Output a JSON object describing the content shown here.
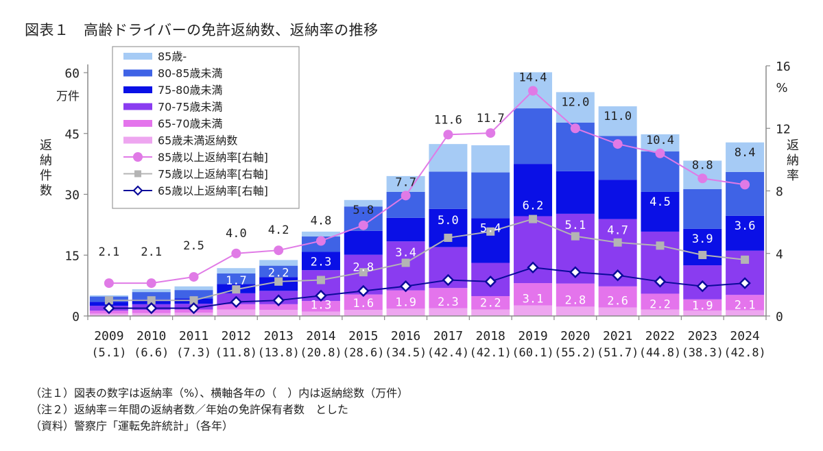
{
  "title": "図表１　高齢ドライバーの免許返納数、返納率の推移",
  "notes": [
    "（注１）図表の数字は返納率（%）、横軸各年の（　）内は返納総数（万件）",
    "（注２）返納率＝年間の返納者数／年始の免許保有者数　とした",
    "（資料）警察庁「運転免許統計」（各年）"
  ],
  "colors": {
    "seg_85plus": "#a6cbf5",
    "seg_80_85": "#3f63e6",
    "seg_75_80": "#0a10e6",
    "seg_70_75": "#8a3cf0",
    "seg_65_70": "#e474ec",
    "seg_under65": "#eea6f0",
    "line_85": "#e07ae6",
    "line_75": "#b4b4b4",
    "line_65": "#0a0a9a",
    "axis": "#888888"
  },
  "chart_data": {
    "type": "bar+line",
    "title": "高齢ドライバーの免許返納数、返納率の推移",
    "categories": [
      "2009",
      "2010",
      "2011",
      "2012",
      "2013",
      "2014",
      "2015",
      "2016",
      "2017",
      "2018",
      "2019",
      "2020",
      "2021",
      "2022",
      "2023",
      "2024"
    ],
    "category_sublabels": [
      "(5.1)",
      "(6.6)",
      "(7.3)",
      "(11.8)",
      "(13.8)",
      "(20.8)",
      "(28.6)",
      "(34.5)",
      "(42.4)",
      "(42.1)",
      "(60.1)",
      "(55.2)",
      "(51.7)",
      "(44.8)",
      "(38.3)",
      "(42.8)"
    ],
    "totals": [
      5.1,
      6.6,
      7.3,
      11.8,
      13.8,
      20.8,
      28.6,
      34.5,
      42.4,
      42.1,
      60.1,
      55.2,
      51.7,
      44.8,
      38.3,
      42.8
    ],
    "left_axis": {
      "label": "返納件数",
      "unit": "万件",
      "ylim": [
        0,
        60
      ],
      "ticks": [
        0,
        15,
        30,
        45,
        60
      ]
    },
    "right_axis": {
      "label": "返納率",
      "unit": "%",
      "ylim": [
        0,
        16
      ],
      "ticks": [
        0,
        4,
        8,
        12,
        16
      ]
    },
    "bar_series": [
      {
        "name": "65歳未満返納数",
        "color_key": "seg_under65",
        "values": [
          0.6,
          0.7,
          0.8,
          1.6,
          1.5,
          1.1,
          1.5,
          1.8,
          1.9,
          1.6,
          2.6,
          2.3,
          2.1,
          1.6,
          1.3,
          1.4
        ]
      },
      {
        "name": "65-70歳未満",
        "color_key": "seg_65_70",
        "values": [
          0.7,
          0.8,
          0.8,
          1.3,
          1.4,
          2.6,
          3.8,
          4.5,
          5.0,
          3.3,
          5.5,
          5.7,
          5.2,
          3.9,
          2.8,
          3.8
        ]
      },
      {
        "name": "70-75歳未満",
        "color_key": "seg_70_75",
        "values": [
          1.2,
          1.4,
          1.4,
          2.7,
          3.3,
          7.6,
          9.8,
          12.1,
          10.1,
          8.2,
          16.5,
          17.2,
          16.6,
          15.3,
          8.4,
          10.9
        ]
      },
      {
        "name": "75-80歳未満",
        "color_key": "seg_75_80",
        "values": [
          1.0,
          1.2,
          1.3,
          2.3,
          3.4,
          4.5,
          5.9,
          5.8,
          9.4,
          11.0,
          12.9,
          10.5,
          9.7,
          9.8,
          9.0,
          8.6
        ]
      },
      {
        "name": "80-85歳未満",
        "color_key": "seg_80_85",
        "values": [
          1.3,
          1.8,
          2.1,
          2.6,
          2.8,
          3.8,
          6.0,
          6.4,
          9.2,
          11.3,
          13.7,
          12.0,
          10.8,
          10.0,
          9.8,
          10.8
        ]
      },
      {
        "name": "85歳-",
        "color_key": "seg_85plus",
        "values": [
          0.3,
          0.7,
          0.9,
          1.3,
          1.4,
          1.2,
          1.6,
          3.9,
          6.8,
          6.7,
          8.9,
          7.5,
          7.3,
          4.2,
          7.0,
          7.3
        ]
      }
    ],
    "line_series": [
      {
        "name": "85歳以上返納率[右軸]",
        "color_key": "line_85",
        "marker": "circle",
        "values": [
          2.1,
          2.1,
          2.5,
          4.0,
          4.2,
          4.8,
          5.8,
          7.7,
          11.6,
          11.7,
          14.4,
          12.0,
          11.0,
          10.4,
          8.8,
          8.4
        ]
      },
      {
        "name": "75歳以上返納率[右軸]",
        "color_key": "line_75",
        "marker": "square",
        "values": [
          1.0,
          1.0,
          1.0,
          1.7,
          2.2,
          2.3,
          2.8,
          3.4,
          5.0,
          5.4,
          6.2,
          5.1,
          4.7,
          4.5,
          3.9,
          3.6
        ]
      },
      {
        "name": "65歳以上返納率[右軸]",
        "color_key": "line_65",
        "marker": "diamond",
        "values": [
          0.5,
          0.5,
          0.5,
          0.9,
          1.0,
          1.3,
          1.6,
          1.9,
          2.3,
          2.2,
          3.1,
          2.8,
          2.6,
          2.2,
          1.9,
          2.1
        ]
      }
    ],
    "data_labels": {
      "rate_85": [
        "2.1",
        "2.1",
        "2.5",
        "4.0",
        "4.2",
        "4.8",
        "5.8",
        "7.7",
        "11.6",
        "11.7",
        "14.4",
        "12.0",
        "11.0",
        "10.4",
        "8.8",
        "8.4"
      ],
      "rate_75": [
        null,
        null,
        null,
        "1.7",
        "2.2",
        "2.3",
        "2.8",
        "3.4",
        "5.0",
        "5.4",
        "6.2",
        "5.1",
        "4.7",
        "4.5",
        "3.9",
        "3.6"
      ],
      "rate_65": [
        null,
        null,
        null,
        null,
        null,
        "1.3",
        "1.6",
        "1.9",
        "2.3",
        "2.2",
        "3.1",
        "2.8",
        "2.6",
        "2.2",
        "1.9",
        "2.1"
      ]
    },
    "legend": {
      "placement": "top-left",
      "entries": [
        "85歳-",
        "80-85歳未満",
        "75-80歳未満",
        "70-75歳未満",
        "65-70歳未満",
        "65歳未満返納数",
        "85歳以上返納率[右軸]",
        "75歳以上返納率[右軸]",
        "65歳以上返納率[右軸]"
      ]
    },
    "grid": false
  }
}
